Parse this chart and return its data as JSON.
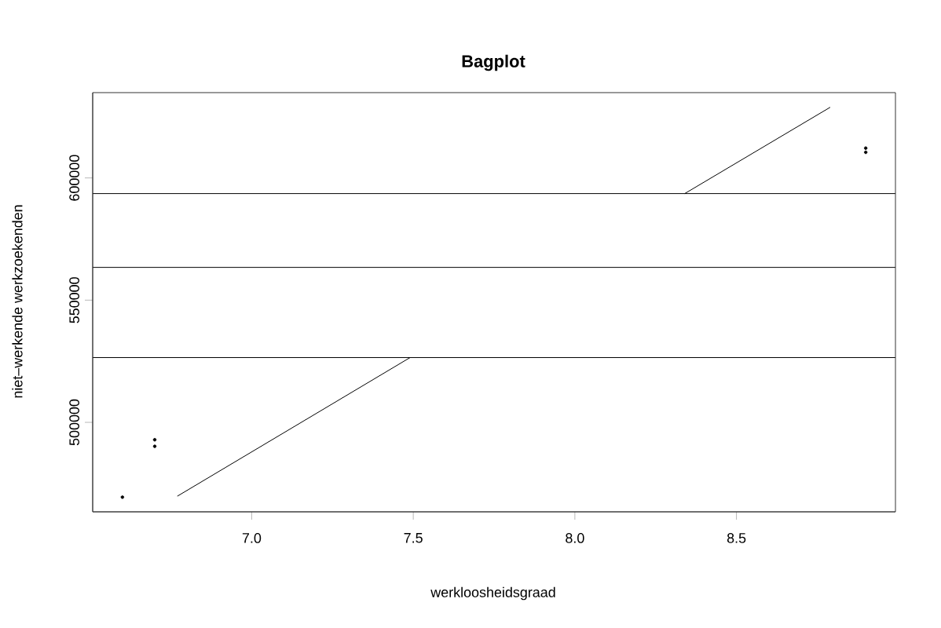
{
  "chart_data": {
    "type": "scatter",
    "title": "Bagplot",
    "xlabel": "werkloosheidsgraad",
    "ylabel": "niet–werkende werkzoekenden",
    "xlim": [
      6.508,
      8.992
    ],
    "ylim": [
      463400,
      634900
    ],
    "xticks": [
      {
        "value": 7,
        "label": "7.0"
      },
      {
        "value": 7.5,
        "label": "7.5"
      },
      {
        "value": 8,
        "label": "8.0"
      },
      {
        "value": 8.5,
        "label": "8.5"
      }
    ],
    "yticks": [
      500000,
      550000,
      600000
    ],
    "grid": false,
    "series": [
      {
        "type": "line",
        "marker": "none",
        "color": "#000000",
        "x": [
          6.77,
          7.49
        ],
        "values": [
          469800,
          526500
        ]
      },
      {
        "type": "line",
        "marker": "none",
        "color": "#000000",
        "x": [
          8.34,
          8.79
        ],
        "values": [
          593600,
          628900
        ]
      },
      {
        "marker": "circle",
        "color": "#000000",
        "x": [
          6.6,
          6.7,
          6.7,
          8.9,
          8.9
        ],
        "values": [
          469400,
          492900,
          490200,
          612200,
          610500
        ]
      }
    ],
    "ref_lines": [
      {
        "axis": "y",
        "value": 593600,
        "color": "#000000"
      },
      {
        "axis": "y",
        "value": 563400,
        "color": "#000000"
      },
      {
        "axis": "y",
        "value": 526500,
        "color": "#000000"
      }
    ]
  }
}
